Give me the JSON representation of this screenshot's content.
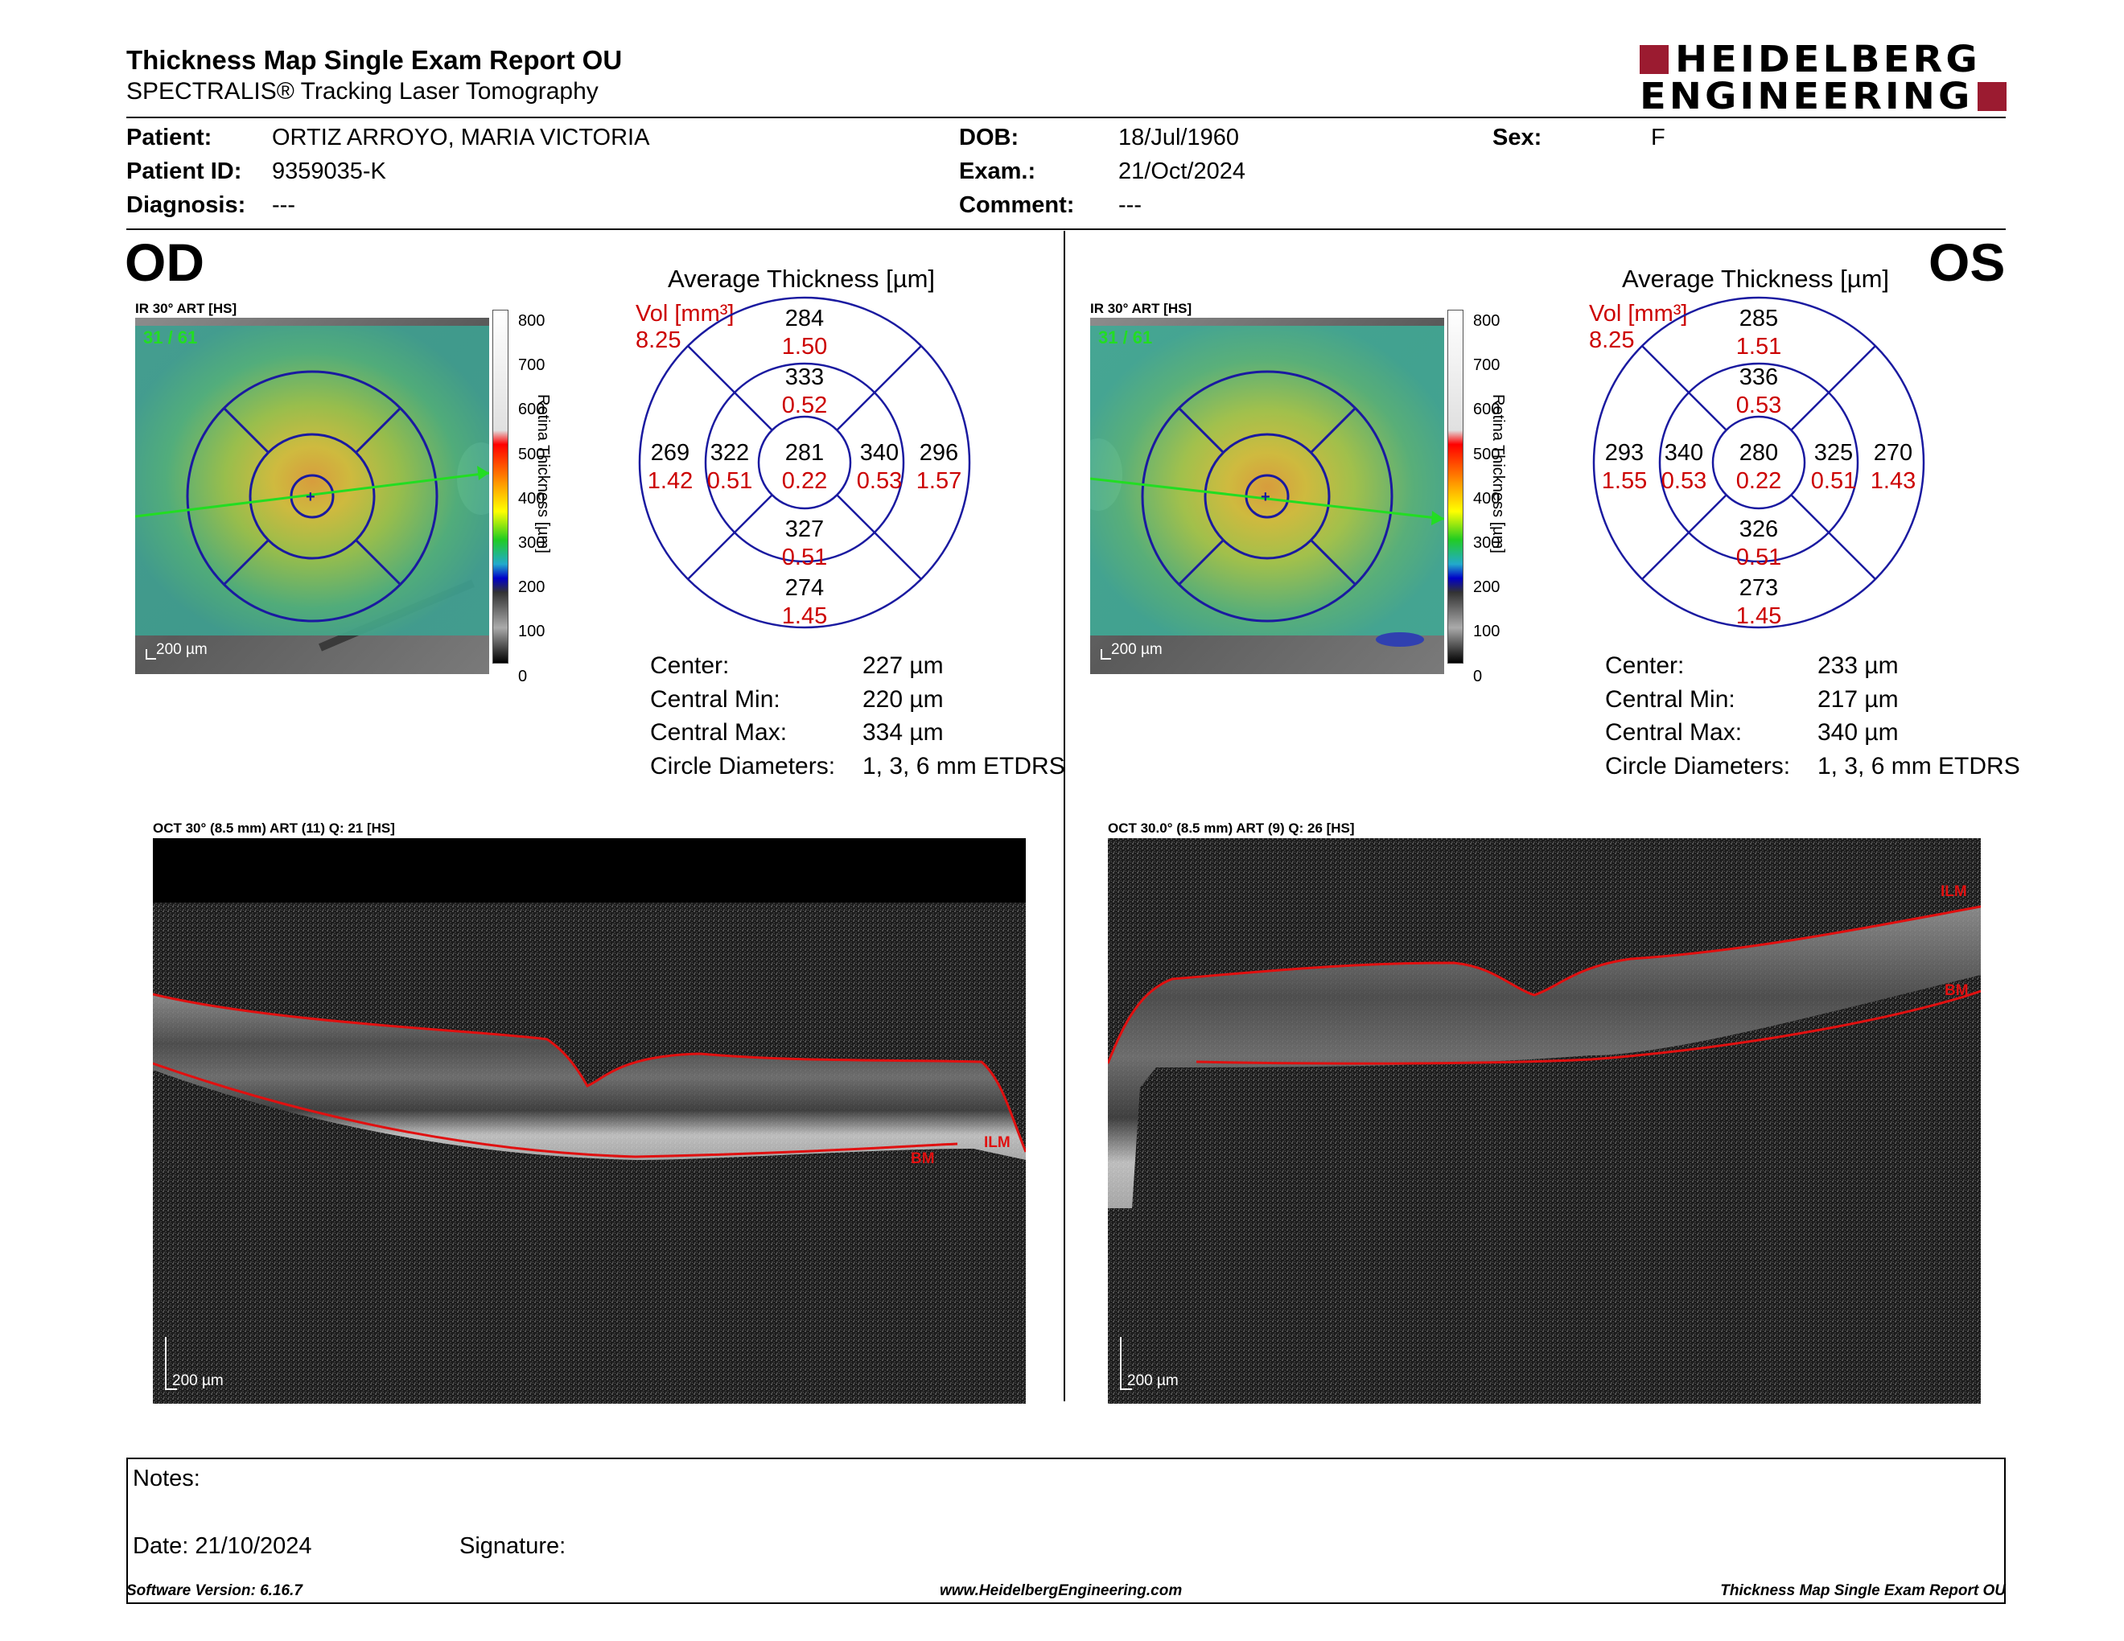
{
  "header": {
    "title": "Thickness Map Single Exam Report OU",
    "subtitle": "SPECTRALIS® Tracking Laser Tomography",
    "logo_line1": "HEIDELBERG",
    "logo_line2": "ENGINEERING",
    "brand_color": "#9b1b30"
  },
  "patient": {
    "patient_label": "Patient:",
    "patient_value": "ORTIZ ARROYO, MARIA VICTORIA",
    "id_label": "Patient ID:",
    "id_value": "9359035-K",
    "diagnosis_label": "Diagnosis:",
    "diagnosis_value": "---",
    "dob_label": "DOB:",
    "dob_value": "18/Jul/1960",
    "exam_label": "Exam.:",
    "exam_value": "21/Oct/2024",
    "comment_label": "Comment:",
    "comment_value": "---",
    "sex_label": "Sex:",
    "sex_value": "F"
  },
  "colorbar": {
    "ticks": [
      "800",
      "700",
      "600",
      "500",
      "400",
      "300",
      "200",
      "100",
      "0"
    ],
    "label": "Retina Thickness [µm]"
  },
  "od": {
    "eye": "OD",
    "fundus_label": "IR 30° ART [HS]",
    "frame": "31 / 61",
    "scale": "200 µm",
    "avg_title": "Average Thickness [µm]",
    "vol_label": "Vol [mm³]",
    "vol_value": "8.25",
    "sectors": {
      "outer_sup": [
        "284",
        "1.50"
      ],
      "inner_sup": [
        "333",
        "0.52"
      ],
      "outer_temp": [
        "269",
        "1.42"
      ],
      "inner_temp": [
        "322",
        "0.51"
      ],
      "center": [
        "281",
        "0.22"
      ],
      "inner_nas": [
        "340",
        "0.53"
      ],
      "outer_nas": [
        "296",
        "1.57"
      ],
      "inner_inf": [
        "327",
        "0.51"
      ],
      "outer_inf": [
        "274",
        "1.45"
      ]
    },
    "stats": [
      [
        "Center:",
        "227 µm"
      ],
      [
        "Central Min:",
        "220 µm"
      ],
      [
        "Central Max:",
        "334 µm"
      ],
      [
        "Circle Diameters:",
        "1, 3, 6 mm ETDRS"
      ]
    ],
    "oct_label": "OCT 30° (8.5 mm) ART (11) Q: 21 [HS]",
    "oct_scale": "200 µm",
    "ilm": "ILM",
    "bm": "BM"
  },
  "os": {
    "eye": "OS",
    "fundus_label": "IR 30° ART [HS]",
    "frame": "31 / 61",
    "scale": "200 µm",
    "avg_title": "Average Thickness [µm]",
    "vol_label": "Vol [mm³]",
    "vol_value": "8.25",
    "sectors": {
      "outer_sup": [
        "285",
        "1.51"
      ],
      "inner_sup": [
        "336",
        "0.53"
      ],
      "outer_temp": [
        "293",
        "1.55"
      ],
      "inner_temp": [
        "340",
        "0.53"
      ],
      "center": [
        "280",
        "0.22"
      ],
      "inner_nas": [
        "325",
        "0.51"
      ],
      "outer_nas": [
        "270",
        "1.43"
      ],
      "inner_inf": [
        "326",
        "0.51"
      ],
      "outer_inf": [
        "273",
        "1.45"
      ]
    },
    "stats": [
      [
        "Center:",
        "233 µm"
      ],
      [
        "Central Min:",
        "217 µm"
      ],
      [
        "Central Max:",
        "340 µm"
      ],
      [
        "Circle Diameters:",
        "1, 3, 6 mm ETDRS"
      ]
    ],
    "oct_label": "OCT 30.0° (8.5 mm) ART (9) Q: 26 [HS]",
    "oct_scale": "200 µm",
    "ilm": "ILM",
    "bm": "BM"
  },
  "notes": {
    "notes_label": "Notes:",
    "date_label": "Date: 21/10/2024",
    "signature_label": "Signature:"
  },
  "footer": {
    "software": "Software Version: 6.16.7",
    "website": "www.HeidelbergEngineering.com",
    "report": "Thickness Map Single Exam Report OU"
  }
}
